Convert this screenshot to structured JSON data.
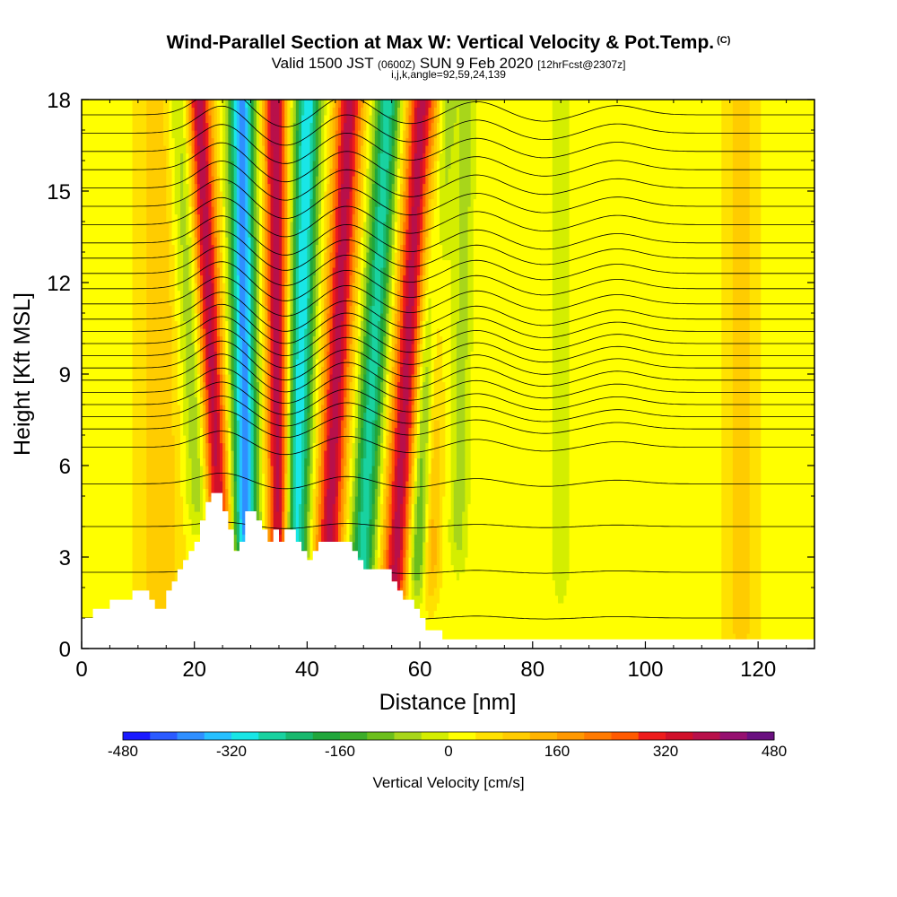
{
  "title": {
    "main": "Wind-Parallel Section at Max W: Vertical Velocity & Pot.Temp.",
    "copyright": "(C)",
    "valid_prefix": "Valid 1500 JST",
    "valid_zulu": "(0600Z)",
    "valid_date": "SUN 9 Feb 2020",
    "forecast": "[12hrFcst@2307z]",
    "indices": "i,j,k,angle=92,59,24,139"
  },
  "chart_data": {
    "type": "heatmap",
    "xlabel": "Distance [nm]",
    "ylabel": "Height [Kft MSL]",
    "xlim": [
      0,
      130
    ],
    "ylim": [
      0,
      18
    ],
    "x_ticks": [
      0,
      20,
      40,
      60,
      80,
      100,
      120
    ],
    "y_ticks": [
      0,
      3,
      6,
      9,
      12,
      15,
      18
    ],
    "colorbar": {
      "label": "Vertical Velocity [cm/s]",
      "range": [
        -480,
        480
      ],
      "tick_labels": [
        "-480",
        "-320",
        "-160",
        "0",
        "160",
        "320",
        "480"
      ],
      "colors": [
        "#1a1aff",
        "#2b5bff",
        "#2f8fff",
        "#26c0ff",
        "#19e6e6",
        "#19d2a0",
        "#19b86e",
        "#20a63c",
        "#3cad2a",
        "#6cbf1c",
        "#a8d61a",
        "#d4ee00",
        "#ffff00",
        "#ffe100",
        "#ffcc00",
        "#ffb400",
        "#ff9800",
        "#ff7a00",
        "#ff5a00",
        "#ee1c1c",
        "#d0102a",
        "#b8104a",
        "#961070",
        "#6a1080"
      ]
    },
    "terrain_profile": {
      "distance_nm": [
        0,
        2,
        2,
        5,
        5,
        9,
        9,
        12,
        12,
        13,
        13,
        15,
        15,
        16,
        16,
        17,
        17,
        18,
        18,
        19,
        19,
        20,
        20,
        21,
        21,
        22,
        22,
        23,
        23,
        25,
        25,
        26,
        26,
        27,
        27,
        28,
        28,
        29,
        29,
        31,
        31,
        32,
        32,
        33,
        33,
        34,
        34,
        35,
        35,
        36,
        36,
        38,
        38,
        39,
        39,
        40,
        40,
        41,
        41,
        42,
        42,
        43,
        43,
        44,
        44,
        45,
        45,
        46,
        46,
        48,
        48,
        49,
        49,
        50,
        50,
        51,
        51,
        52,
        52,
        53,
        53,
        54,
        54,
        55,
        55,
        56,
        56,
        57,
        57,
        58,
        58,
        59,
        59,
        60,
        60,
        61,
        61,
        62,
        62,
        63,
        63,
        64,
        64,
        65,
        65,
        66,
        66,
        130
      ],
      "height_kft": [
        1.0,
        1.0,
        1.3,
        1.3,
        1.6,
        1.6,
        1.9,
        1.9,
        1.6,
        1.6,
        1.3,
        1.3,
        1.9,
        1.9,
        2.2,
        2.2,
        2.6,
        2.6,
        2.9,
        2.9,
        3.2,
        3.2,
        3.5,
        3.5,
        4.2,
        4.2,
        4.8,
        4.8,
        5.1,
        5.1,
        4.5,
        4.5,
        3.9,
        3.9,
        3.2,
        3.2,
        3.5,
        3.5,
        4.5,
        4.5,
        4.2,
        4.2,
        3.9,
        3.9,
        3.5,
        3.5,
        3.9,
        3.9,
        3.5,
        3.5,
        3.9,
        3.9,
        3.5,
        3.5,
        3.2,
        3.2,
        2.9,
        2.9,
        3.2,
        3.2,
        3.5,
        3.5,
        3.5,
        3.5,
        3.5,
        3.5,
        3.5,
        3.5,
        3.5,
        3.5,
        3.2,
        3.2,
        2.9,
        2.9,
        2.6,
        2.6,
        2.6,
        2.6,
        2.6,
        2.6,
        2.6,
        2.6,
        2.6,
        2.6,
        2.2,
        2.2,
        1.9,
        1.9,
        1.6,
        1.6,
        1.6,
        1.6,
        1.3,
        1.3,
        1.0,
        1.0,
        0.6,
        0.6,
        0.6,
        0.6,
        0.6,
        0.6,
        0.3,
        0.3,
        0.3,
        0.3,
        0.3,
        0.3
      ],
      "fill": "#ffffff"
    },
    "background_value_cm_s": 20,
    "updraft_bands": [
      {
        "base_distance_nm": 24,
        "base_height_kft": 5.0,
        "tilt_nm_per_kft": -0.25,
        "width_nm": 2.2,
        "peak_cm_s": 380
      },
      {
        "base_distance_nm": 35,
        "base_height_kft": 4.5,
        "tilt_nm_per_kft": -0.05,
        "width_nm": 2.0,
        "peak_cm_s": 380
      },
      {
        "base_distance_nm": 44,
        "base_height_kft": 4.0,
        "tilt_nm_per_kft": 0.25,
        "width_nm": 2.4,
        "peak_cm_s": 360
      },
      {
        "base_distance_nm": 56,
        "base_height_kft": 3.5,
        "tilt_nm_per_kft": 0.3,
        "width_nm": 2.4,
        "peak_cm_s": 360
      },
      {
        "base_distance_nm": 62,
        "base_height_kft": 4.0,
        "tilt_nm_per_kft": 0.1,
        "width_nm": 1.6,
        "peak_cm_s": 160
      },
      {
        "base_distance_nm": 14,
        "base_height_kft": 2.0,
        "tilt_nm_per_kft": 0.0,
        "width_nm": 4.0,
        "peak_cm_s": 90
      },
      {
        "base_distance_nm": 117,
        "base_height_kft": 2.0,
        "tilt_nm_per_kft": 0.0,
        "width_nm": 3.0,
        "peak_cm_s": 80
      }
    ],
    "downdraft_bands": [
      {
        "base_distance_nm": 29,
        "base_height_kft": 5.0,
        "tilt_nm_per_kft": -0.05,
        "width_nm": 2.2,
        "peak_cm_s": -400
      },
      {
        "base_distance_nm": 38,
        "base_height_kft": 4.0,
        "tilt_nm_per_kft": 0.15,
        "width_nm": 2.2,
        "peak_cm_s": -340
      },
      {
        "base_distance_nm": 50,
        "base_height_kft": 3.5,
        "tilt_nm_per_kft": 0.3,
        "width_nm": 2.2,
        "peak_cm_s": -280
      },
      {
        "base_distance_nm": 21,
        "base_height_kft": 6.0,
        "tilt_nm_per_kft": -0.3,
        "width_nm": 2.5,
        "peak_cm_s": -130
      },
      {
        "base_distance_nm": 60,
        "base_height_kft": 4.0,
        "tilt_nm_per_kft": 0.3,
        "width_nm": 2.0,
        "peak_cm_s": -190
      },
      {
        "base_distance_nm": 67,
        "base_height_kft": 5.0,
        "tilt_nm_per_kft": 0.1,
        "width_nm": 1.5,
        "peak_cm_s": -80
      },
      {
        "base_distance_nm": 85,
        "base_height_kft": 4.0,
        "tilt_nm_per_kft": 0.0,
        "width_nm": 1.4,
        "peak_cm_s": -60
      }
    ],
    "theta_contours": {
      "base_heights_kft": [
        1.0,
        2.5,
        4.0,
        5.4,
        6.6,
        7.2,
        7.6,
        8.0,
        8.4,
        8.8,
        9.2,
        9.6,
        10.0,
        10.4,
        10.8,
        11.3,
        11.8,
        12.3,
        12.8,
        13.3,
        13.9,
        14.5,
        15.1,
        15.7,
        16.3,
        16.9,
        17.5
      ],
      "wave_amplitude_kft": 0.9,
      "wave_centers_nm": [
        25,
        36,
        47,
        58,
        70,
        82,
        95
      ],
      "wave_width_nm": 6,
      "color": "#000000"
    }
  }
}
